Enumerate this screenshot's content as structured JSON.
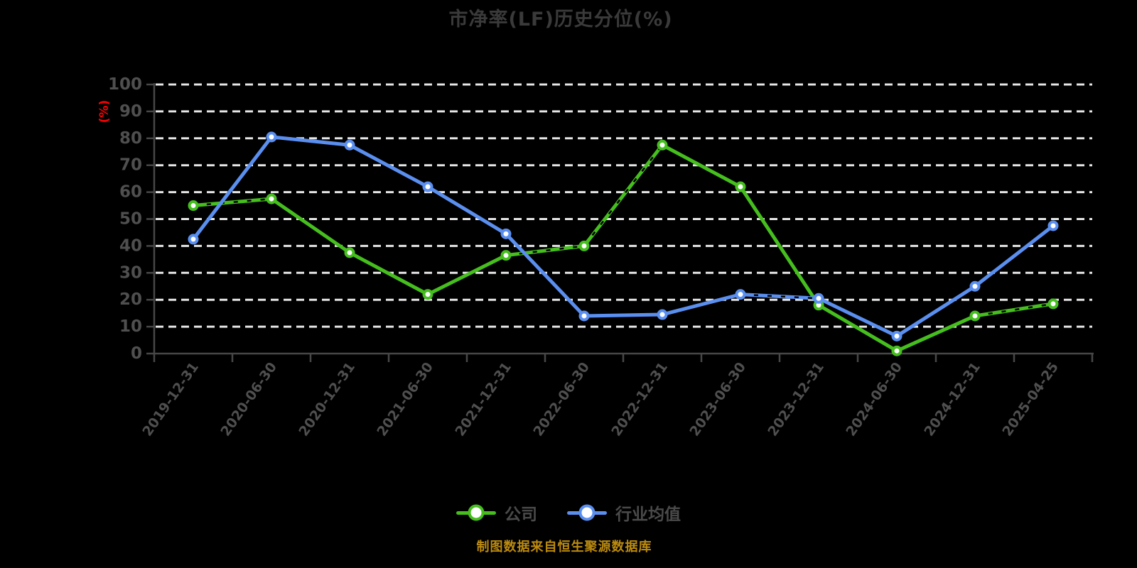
{
  "chart_data": {
    "type": "line",
    "title": "市净率(LF)历史分位(%)",
    "ylabel": "(%)",
    "xlabel": "",
    "footnote": "制图数据来自恒生聚源数据库",
    "ylim": [
      0,
      100
    ],
    "yticks": [
      0,
      10,
      20,
      30,
      40,
      50,
      60,
      70,
      80,
      90,
      100
    ],
    "grid": "horizontal-dashed-white",
    "legend_position": "bottom",
    "categories": [
      "2019-12-31",
      "2020-06-30",
      "2020-12-31",
      "2021-06-30",
      "2021-12-31",
      "2022-06-30",
      "2022-12-31",
      "2023-06-30",
      "2023-12-31",
      "2024-06-30",
      "2024-12-31",
      "2025-04-25"
    ],
    "series": [
      {
        "name": "公司",
        "color": "#45BE1E",
        "values": [
          55,
          57.5,
          37.5,
          22,
          36.5,
          40,
          77.5,
          62,
          18,
          1,
          14,
          18.5
        ]
      },
      {
        "name": "行业均值",
        "color": "#5A8FF0",
        "values": [
          42.5,
          80.5,
          77.5,
          62,
          44.5,
          14,
          14.5,
          22,
          20.5,
          6.5,
          25,
          47.5
        ]
      }
    ],
    "colors": {
      "background": "#000000",
      "grid": "#E6E6E6",
      "axis": "#474747",
      "tick_labels": "#4F4F4F",
      "title": "#3A3A3A",
      "legend_text": "#4A4A4A",
      "ylabel": "#FF0000",
      "footnote": "#BC8B10",
      "marker_fill": "#FFFFFF"
    }
  }
}
